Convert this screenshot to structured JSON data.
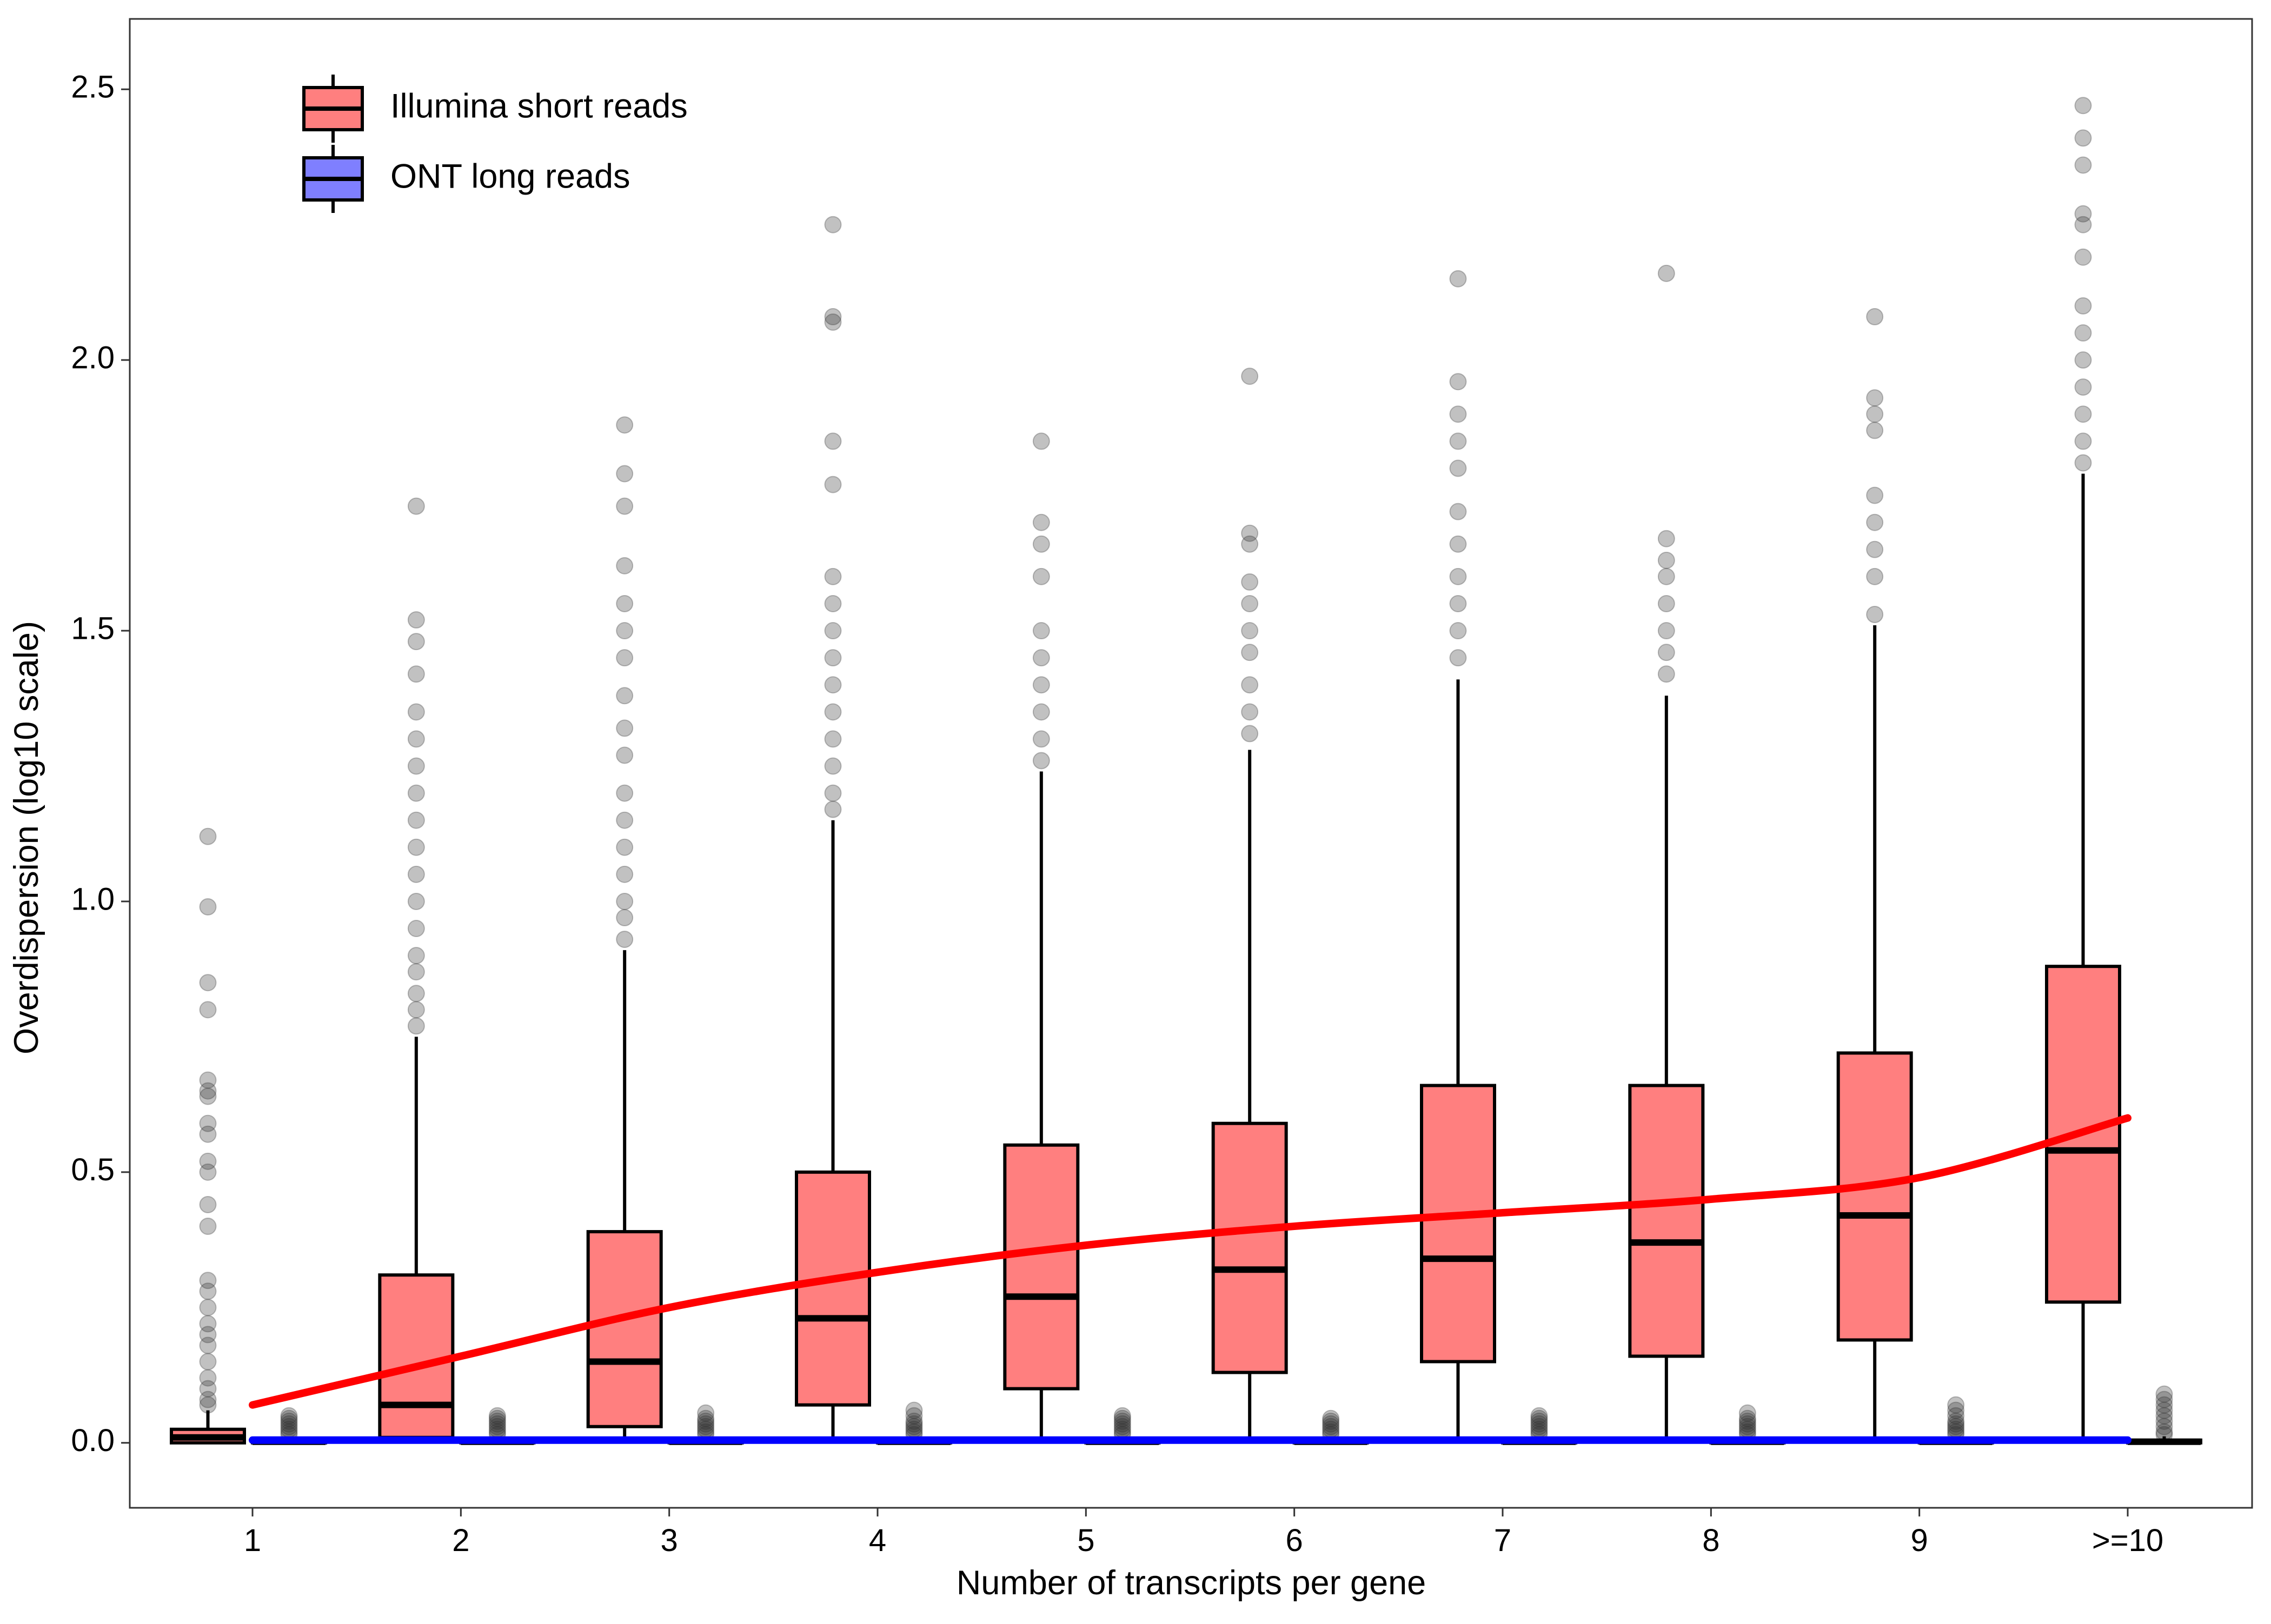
{
  "chart_data": {
    "type": "box",
    "title": "",
    "xlabel": "Number of transcripts per gene",
    "ylabel": "Overdispersion (log10 scale)",
    "ylim": [
      -0.12,
      2.63
    ],
    "yticks": [
      "0.0",
      "0.5",
      "1.0",
      "1.5",
      "2.0",
      "2.5"
    ],
    "ytick_values": [
      0.0,
      0.5,
      1.0,
      1.5,
      2.0,
      2.5
    ],
    "categories": [
      "1",
      "2",
      "3",
      "4",
      "5",
      "6",
      "7",
      "8",
      "9",
      ">=10"
    ],
    "grid": false,
    "legend_position": "top-left",
    "colors": {
      "illumina_fill": "#ff7f7f",
      "ont_fill": "#7f7fff",
      "trend_illumina": "#ff0000",
      "trend_ont": "#0000ff",
      "outlier": "#333333"
    },
    "series": [
      {
        "name": "Illumina short reads",
        "boxes": [
          {
            "q1": 0.0,
            "median": 0.01,
            "q3": 0.025,
            "whisker_low": 0.0,
            "whisker_high": 0.06,
            "outliers": [
              0.07,
              0.08,
              0.1,
              0.12,
              0.15,
              0.18,
              0.2,
              0.22,
              0.25,
              0.28,
              0.3,
              0.4,
              0.44,
              0.5,
              0.52,
              0.57,
              0.59,
              0.64,
              0.65,
              0.67,
              0.8,
              0.85,
              0.99,
              1.12
            ]
          },
          {
            "q1": 0.01,
            "median": 0.07,
            "q3": 0.31,
            "whisker_low": 0.0,
            "whisker_high": 0.75,
            "outliers": [
              0.77,
              0.8,
              0.83,
              0.87,
              0.9,
              0.95,
              1.0,
              1.05,
              1.1,
              1.15,
              1.2,
              1.25,
              1.3,
              1.35,
              1.42,
              1.48,
              1.52,
              1.73
            ]
          },
          {
            "q1": 0.03,
            "median": 0.15,
            "q3": 0.39,
            "whisker_low": 0.0,
            "whisker_high": 0.91,
            "outliers": [
              0.93,
              0.97,
              1.0,
              1.05,
              1.1,
              1.15,
              1.2,
              1.27,
              1.32,
              1.38,
              1.45,
              1.5,
              1.55,
              1.62,
              1.73,
              1.79,
              1.88
            ]
          },
          {
            "q1": 0.07,
            "median": 0.23,
            "q3": 0.5,
            "whisker_low": 0.0,
            "whisker_high": 1.15,
            "outliers": [
              1.17,
              1.2,
              1.25,
              1.3,
              1.35,
              1.4,
              1.45,
              1.5,
              1.55,
              1.6,
              1.77,
              1.85,
              2.07,
              2.08,
              2.25
            ]
          },
          {
            "q1": 0.1,
            "median": 0.27,
            "q3": 0.55,
            "whisker_low": 0.0,
            "whisker_high": 1.24,
            "outliers": [
              1.26,
              1.3,
              1.35,
              1.4,
              1.45,
              1.5,
              1.6,
              1.66,
              1.7,
              1.85
            ]
          },
          {
            "q1": 0.13,
            "median": 0.32,
            "q3": 0.59,
            "whisker_low": 0.0,
            "whisker_high": 1.28,
            "outliers": [
              1.31,
              1.35,
              1.4,
              1.46,
              1.5,
              1.55,
              1.59,
              1.66,
              1.68,
              1.97
            ]
          },
          {
            "q1": 0.15,
            "median": 0.34,
            "q3": 0.66,
            "whisker_low": 0.0,
            "whisker_high": 1.41,
            "outliers": [
              1.45,
              1.5,
              1.55,
              1.6,
              1.66,
              1.72,
              1.8,
              1.85,
              1.9,
              1.96,
              2.15
            ]
          },
          {
            "q1": 0.16,
            "median": 0.37,
            "q3": 0.66,
            "whisker_low": 0.0,
            "whisker_high": 1.38,
            "outliers": [
              1.42,
              1.46,
              1.5,
              1.55,
              1.6,
              1.63,
              1.67,
              2.16
            ]
          },
          {
            "q1": 0.19,
            "median": 0.42,
            "q3": 0.72,
            "whisker_low": 0.0,
            "whisker_high": 1.51,
            "outliers": [
              1.53,
              1.6,
              1.65,
              1.7,
              1.75,
              1.87,
              1.9,
              1.93,
              2.08
            ]
          },
          {
            "q1": 0.26,
            "median": 0.54,
            "q3": 0.88,
            "whisker_low": 0.0,
            "whisker_high": 1.79,
            "outliers": [
              1.81,
              1.85,
              1.9,
              1.95,
              2.0,
              2.05,
              2.1,
              2.19,
              2.25,
              2.27,
              2.36,
              2.41,
              2.47
            ]
          }
        ],
        "trend": [
          0.07,
          0.16,
          0.25,
          0.315,
          0.365,
          0.4,
          0.425,
          0.45,
          0.49,
          0.6
        ]
      },
      {
        "name": "ONT long reads",
        "boxes": [
          {
            "q1": 0.0,
            "median": 0.002,
            "q3": 0.005,
            "whisker_low": 0.0,
            "whisker_high": 0.01,
            "outliers": [
              0.015,
              0.02,
              0.025,
              0.03,
              0.035,
              0.04,
              0.045,
              0.05
            ]
          },
          {
            "q1": 0.0,
            "median": 0.002,
            "q3": 0.005,
            "whisker_low": 0.0,
            "whisker_high": 0.01,
            "outliers": [
              0.015,
              0.02,
              0.025,
              0.03,
              0.035,
              0.04,
              0.045,
              0.05
            ]
          },
          {
            "q1": 0.0,
            "median": 0.002,
            "q3": 0.005,
            "whisker_low": 0.0,
            "whisker_high": 0.01,
            "outliers": [
              0.015,
              0.02,
              0.025,
              0.03,
              0.035,
              0.04,
              0.045,
              0.055
            ]
          },
          {
            "q1": 0.0,
            "median": 0.002,
            "q3": 0.005,
            "whisker_low": 0.0,
            "whisker_high": 0.01,
            "outliers": [
              0.015,
              0.02,
              0.025,
              0.03,
              0.035,
              0.04,
              0.05,
              0.06
            ]
          },
          {
            "q1": 0.0,
            "median": 0.002,
            "q3": 0.005,
            "whisker_low": 0.0,
            "whisker_high": 0.01,
            "outliers": [
              0.015,
              0.02,
              0.025,
              0.03,
              0.035,
              0.04,
              0.045,
              0.05
            ]
          },
          {
            "q1": 0.0,
            "median": 0.002,
            "q3": 0.005,
            "whisker_low": 0.0,
            "whisker_high": 0.01,
            "outliers": [
              0.015,
              0.02,
              0.025,
              0.03,
              0.035,
              0.04,
              0.045
            ]
          },
          {
            "q1": 0.0,
            "median": 0.002,
            "q3": 0.005,
            "whisker_low": 0.0,
            "whisker_high": 0.01,
            "outliers": [
              0.015,
              0.02,
              0.025,
              0.03,
              0.035,
              0.04,
              0.045,
              0.05
            ]
          },
          {
            "q1": 0.0,
            "median": 0.002,
            "q3": 0.005,
            "whisker_low": 0.0,
            "whisker_high": 0.01,
            "outliers": [
              0.015,
              0.02,
              0.025,
              0.03,
              0.035,
              0.04,
              0.045,
              0.055
            ]
          },
          {
            "q1": 0.0,
            "median": 0.002,
            "q3": 0.005,
            "whisker_low": 0.0,
            "whisker_high": 0.01,
            "outliers": [
              0.015,
              0.02,
              0.025,
              0.03,
              0.035,
              0.04,
              0.05,
              0.06,
              0.07
            ]
          },
          {
            "q1": 0.0,
            "median": 0.002,
            "q3": 0.005,
            "whisker_low": 0.0,
            "whisker_high": 0.012,
            "outliers": [
              0.015,
              0.02,
              0.03,
              0.04,
              0.05,
              0.06,
              0.07,
              0.08,
              0.09
            ]
          }
        ],
        "trend": [
          0.005,
          0.005,
          0.005,
          0.005,
          0.005,
          0.005,
          0.005,
          0.005,
          0.005,
          0.005
        ]
      }
    ]
  }
}
